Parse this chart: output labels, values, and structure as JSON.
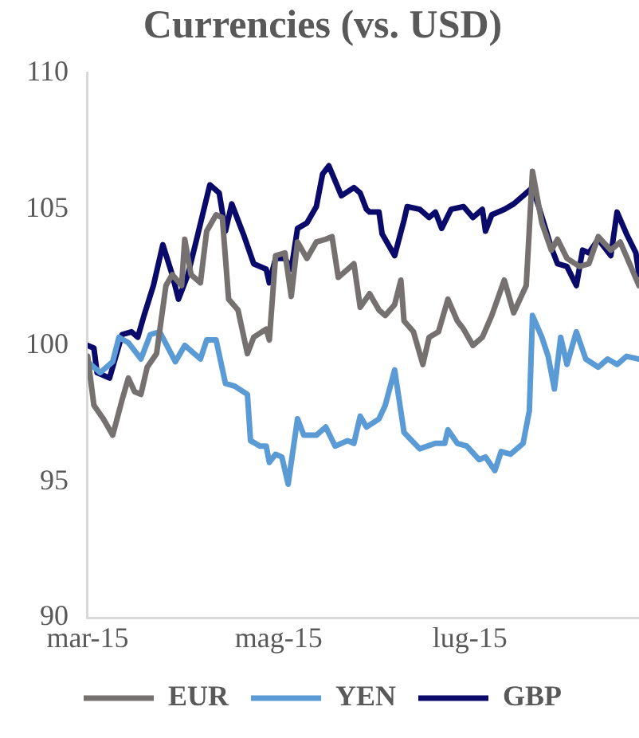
{
  "chart_data": {
    "type": "line",
    "title": "Currencies (vs. USD)",
    "xlim": [
      "2015-03-01",
      "2015-08-24"
    ],
    "xticks": [
      {
        "value": "2015-03-01",
        "label": "mar-15"
      },
      {
        "value": "2015-05-01",
        "label": "mag-15"
      },
      {
        "value": "2015-07-01",
        "label": "lug-15"
      }
    ],
    "ylim": [
      90,
      110
    ],
    "yticks": [
      90,
      95,
      100,
      105,
      110
    ],
    "grid": false,
    "legend": "bottom",
    "marker": "none",
    "line_style": "solid",
    "series": [
      {
        "name": "EUR",
        "color": "#767171",
        "x": [
          "2015-03-01",
          "2015-03-03",
          "2015-03-06",
          "2015-03-09",
          "2015-03-12",
          "2015-03-14",
          "2015-03-16",
          "2015-03-18",
          "2015-03-20",
          "2015-03-23",
          "2015-03-26",
          "2015-03-28",
          "2015-03-31",
          "2015-04-01",
          "2015-04-03",
          "2015-04-06",
          "2015-04-08",
          "2015-04-11",
          "2015-04-13",
          "2015-04-15",
          "2015-04-18",
          "2015-04-21",
          "2015-04-23",
          "2015-04-27",
          "2015-04-28",
          "2015-04-30",
          "2015-05-03",
          "2015-05-05",
          "2015-05-07",
          "2015-05-10",
          "2015-05-13",
          "2015-05-16",
          "2015-05-18",
          "2015-05-20",
          "2015-05-23",
          "2015-05-25",
          "2015-05-27",
          "2015-05-30",
          "2015-06-02",
          "2015-06-04",
          "2015-06-07",
          "2015-06-09",
          "2015-06-10",
          "2015-06-13",
          "2015-06-16",
          "2015-06-18",
          "2015-06-21",
          "2015-06-24",
          "2015-06-27",
          "2015-06-29",
          "2015-07-02",
          "2015-07-05",
          "2015-07-08",
          "2015-07-12",
          "2015-07-15",
          "2015-07-19",
          "2015-07-21",
          "2015-07-24",
          "2015-07-27",
          "2015-07-29",
          "2015-08-01",
          "2015-08-05",
          "2015-08-08",
          "2015-08-11",
          "2015-08-15",
          "2015-08-18",
          "2015-08-21",
          "2015-08-24"
        ],
        "values": [
          99.6,
          97.8,
          97.3,
          96.7,
          98.0,
          98.8,
          98.3,
          98.2,
          99.2,
          99.7,
          102.2,
          102.6,
          102.2,
          103.9,
          102.6,
          102.3,
          104.2,
          104.8,
          104.7,
          101.7,
          101.3,
          99.7,
          100.3,
          100.6,
          100.2,
          103.3,
          103.4,
          101.8,
          103.8,
          103.2,
          103.8,
          103.9,
          104.0,
          102.5,
          102.8,
          103.0,
          101.4,
          101.9,
          101.3,
          101.1,
          101.5,
          102.4,
          100.9,
          100.5,
          99.3,
          100.3,
          100.5,
          101.7,
          100.9,
          100.6,
          100.0,
          100.3,
          101.1,
          102.4,
          101.2,
          102.2,
          106.4,
          104.5,
          103.5,
          103.9,
          103.2,
          102.9,
          103.0,
          104.0,
          103.5,
          103.8,
          103.0,
          102.2
        ]
      },
      {
        "name": "YEN",
        "color": "#5b9bd5",
        "x": [
          "2015-03-01",
          "2015-03-05",
          "2015-03-09",
          "2015-03-11",
          "2015-03-14",
          "2015-03-18",
          "2015-03-21",
          "2015-03-24",
          "2015-03-29",
          "2015-04-01",
          "2015-04-04",
          "2015-04-06",
          "2015-04-08",
          "2015-04-11",
          "2015-04-14",
          "2015-04-17",
          "2015-04-21",
          "2015-04-22",
          "2015-04-25",
          "2015-04-27",
          "2015-04-28",
          "2015-04-30",
          "2015-05-02",
          "2015-05-04",
          "2015-05-07",
          "2015-05-09",
          "2015-05-13",
          "2015-05-16",
          "2015-05-19",
          "2015-05-23",
          "2015-05-25",
          "2015-05-27",
          "2015-05-29",
          "2015-06-02",
          "2015-06-04",
          "2015-06-07",
          "2015-06-10",
          "2015-06-15",
          "2015-06-20",
          "2015-06-23",
          "2015-06-24",
          "2015-06-27",
          "2015-06-30",
          "2015-07-04",
          "2015-07-06",
          "2015-07-09",
          "2015-07-11",
          "2015-07-14",
          "2015-07-18",
          "2015-07-20",
          "2015-07-21",
          "2015-07-24",
          "2015-07-26",
          "2015-07-28",
          "2015-07-30",
          "2015-08-01",
          "2015-08-04",
          "2015-08-07",
          "2015-08-11",
          "2015-08-14",
          "2015-08-17",
          "2015-08-20",
          "2015-08-24"
        ],
        "values": [
          99.4,
          99.0,
          99.4,
          100.3,
          100.1,
          99.5,
          100.4,
          100.5,
          99.4,
          100.0,
          99.7,
          99.5,
          100.2,
          100.2,
          98.6,
          98.5,
          98.2,
          96.5,
          96.3,
          96.3,
          95.7,
          96.0,
          95.9,
          94.9,
          97.3,
          96.7,
          96.7,
          97.0,
          96.3,
          96.5,
          96.4,
          97.4,
          97.0,
          97.3,
          97.8,
          99.1,
          96.8,
          96.2,
          96.4,
          96.4,
          96.9,
          96.4,
          96.3,
          95.8,
          95.9,
          95.4,
          96.1,
          96.0,
          96.4,
          97.6,
          101.1,
          100.3,
          99.6,
          98.4,
          100.3,
          99.3,
          100.5,
          99.5,
          99.2,
          99.5,
          99.3,
          99.6,
          99.5
        ]
      },
      {
        "name": "GBP",
        "color": "#0a0a6b",
        "x": [
          "2015-03-01",
          "2015-03-03",
          "2015-03-04",
          "2015-03-08",
          "2015-03-12",
          "2015-03-15",
          "2015-03-17",
          "2015-03-19",
          "2015-03-22",
          "2015-03-25",
          "2015-03-28",
          "2015-03-30",
          "2015-04-02",
          "2015-04-05",
          "2015-04-09",
          "2015-04-12",
          "2015-04-14",
          "2015-04-16",
          "2015-04-20",
          "2015-04-23",
          "2015-04-27",
          "2015-04-28",
          "2015-04-30",
          "2015-05-03",
          "2015-05-05",
          "2015-05-07",
          "2015-05-10",
          "2015-05-13",
          "2015-05-15",
          "2015-05-17",
          "2015-05-21",
          "2015-05-25",
          "2015-05-27",
          "2015-05-29",
          "2015-05-30",
          "2015-06-02",
          "2015-06-03",
          "2015-06-07",
          "2015-06-10",
          "2015-06-11",
          "2015-06-15",
          "2015-06-18",
          "2015-06-20",
          "2015-06-22",
          "2015-06-25",
          "2015-06-29",
          "2015-07-02",
          "2015-07-05",
          "2015-07-06",
          "2015-07-08",
          "2015-07-12",
          "2015-07-15",
          "2015-07-17",
          "2015-07-21",
          "2015-07-23",
          "2015-07-27",
          "2015-07-29",
          "2015-08-01",
          "2015-08-04",
          "2015-08-06",
          "2015-08-08",
          "2015-08-11",
          "2015-08-15",
          "2015-08-17",
          "2015-08-20",
          "2015-08-23",
          "2015-08-24"
        ],
        "values": [
          100.0,
          99.9,
          99.0,
          98.8,
          100.4,
          100.5,
          100.3,
          101.1,
          102.2,
          103.7,
          102.6,
          101.7,
          102.6,
          104.0,
          105.9,
          105.6,
          104.2,
          105.2,
          104.0,
          103.0,
          102.8,
          102.3,
          103.2,
          103.2,
          102.8,
          104.3,
          104.5,
          105.1,
          106.3,
          106.6,
          105.5,
          105.8,
          105.6,
          105.0,
          104.9,
          104.9,
          104.1,
          103.3,
          104.6,
          105.1,
          105.0,
          104.7,
          104.9,
          104.3,
          105.0,
          105.1,
          104.7,
          105.0,
          104.2,
          104.8,
          105.0,
          105.2,
          105.4,
          105.8,
          105.1,
          103.6,
          103.0,
          102.9,
          102.2,
          103.5,
          103.4,
          103.9,
          103.3,
          104.9,
          104.1,
          103.4,
          102.6
        ]
      }
    ]
  }
}
